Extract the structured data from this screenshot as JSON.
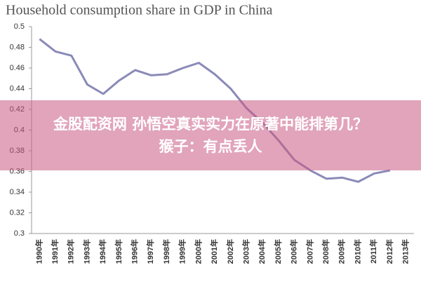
{
  "chart_data": {
    "type": "line",
    "title": "Household consumption share in GDP in China",
    "categories": [
      "1990年",
      "1991年",
      "1992年",
      "1993年",
      "1994年",
      "1995年",
      "1996年",
      "1997年",
      "1998年",
      "1999年",
      "2000年",
      "2001年",
      "2002年",
      "2003年",
      "2004年",
      "2005年",
      "2006年",
      "2007年",
      "2008年",
      "2009年",
      "2010年",
      "2011年",
      "2012年",
      "2013年"
    ],
    "values": [
      0.488,
      0.476,
      0.472,
      0.444,
      0.435,
      0.448,
      0.458,
      0.453,
      0.454,
      0.46,
      0.465,
      0.454,
      0.44,
      0.421,
      0.407,
      0.39,
      0.371,
      0.361,
      0.353,
      0.354,
      0.35,
      0.358,
      0.361,
      null
    ],
    "color": "#8a8ab8",
    "ylim": [
      0.3,
      0.5
    ],
    "yticks": [
      0.3,
      0.32,
      0.34,
      0.36,
      0.38,
      0.4,
      0.42,
      0.44,
      0.46,
      0.48,
      0.5
    ],
    "grid": false
  },
  "overlay": {
    "lines": [
      "金股配资网 孙悟空真实实力在原著中能排第几？",
      "猴子：有点丢人"
    ]
  }
}
